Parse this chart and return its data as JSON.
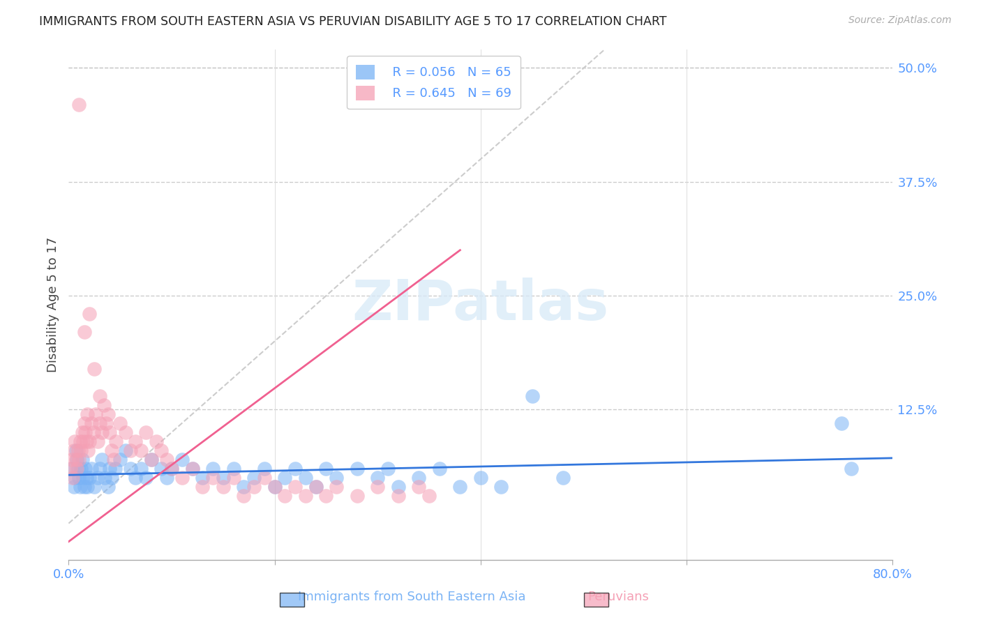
{
  "title": "IMMIGRANTS FROM SOUTH EASTERN ASIA VS PERUVIAN DISABILITY AGE 5 TO 17 CORRELATION CHART",
  "source": "Source: ZipAtlas.com",
  "ylabel": "Disability Age 5 to 17",
  "xlim": [
    0.0,
    0.8
  ],
  "ylim": [
    -0.04,
    0.52
  ],
  "yticks_right": [
    0.0,
    0.125,
    0.25,
    0.375,
    0.5
  ],
  "yticklabels_right": [
    "",
    "12.5%",
    "25.0%",
    "37.5%",
    "50.0%"
  ],
  "grid_color": "#cccccc",
  "background_color": "#ffffff",
  "title_color": "#222222",
  "axis_color": "#5599ff",
  "watermark": "ZIPatlas",
  "legend_r1": "R = 0.056",
  "legend_n1": "N = 65",
  "legend_r2": "R = 0.645",
  "legend_n2": "N = 69",
  "blue_color": "#7ab3f5",
  "pink_color": "#f5a0b5",
  "blue_line_color": "#3377dd",
  "pink_line_color": "#f06090",
  "diag_line_color": "#cccccc",
  "blue_scatter_x": [
    0.003,
    0.005,
    0.006,
    0.007,
    0.008,
    0.009,
    0.01,
    0.011,
    0.012,
    0.013,
    0.014,
    0.015,
    0.016,
    0.017,
    0.018,
    0.02,
    0.022,
    0.025,
    0.028,
    0.03,
    0.032,
    0.035,
    0.038,
    0.04,
    0.042,
    0.045,
    0.05,
    0.055,
    0.06,
    0.065,
    0.07,
    0.075,
    0.08,
    0.09,
    0.095,
    0.1,
    0.11,
    0.12,
    0.13,
    0.14,
    0.15,
    0.16,
    0.17,
    0.18,
    0.19,
    0.2,
    0.21,
    0.22,
    0.23,
    0.24,
    0.25,
    0.26,
    0.28,
    0.3,
    0.31,
    0.32,
    0.34,
    0.36,
    0.38,
    0.4,
    0.42,
    0.45,
    0.75,
    0.76,
    0.48
  ],
  "blue_scatter_y": [
    0.06,
    0.04,
    0.05,
    0.08,
    0.07,
    0.06,
    0.05,
    0.04,
    0.06,
    0.07,
    0.05,
    0.04,
    0.06,
    0.05,
    0.04,
    0.05,
    0.06,
    0.04,
    0.05,
    0.06,
    0.07,
    0.05,
    0.04,
    0.06,
    0.05,
    0.06,
    0.07,
    0.08,
    0.06,
    0.05,
    0.06,
    0.05,
    0.07,
    0.06,
    0.05,
    0.06,
    0.07,
    0.06,
    0.05,
    0.06,
    0.05,
    0.06,
    0.04,
    0.05,
    0.06,
    0.04,
    0.05,
    0.06,
    0.05,
    0.04,
    0.06,
    0.05,
    0.06,
    0.05,
    0.06,
    0.04,
    0.05,
    0.06,
    0.04,
    0.05,
    0.04,
    0.14,
    0.11,
    0.06,
    0.05
  ],
  "pink_scatter_x": [
    0.002,
    0.003,
    0.004,
    0.005,
    0.006,
    0.007,
    0.008,
    0.009,
    0.01,
    0.011,
    0.012,
    0.013,
    0.014,
    0.015,
    0.016,
    0.017,
    0.018,
    0.019,
    0.02,
    0.022,
    0.024,
    0.026,
    0.028,
    0.03,
    0.032,
    0.034,
    0.036,
    0.038,
    0.04,
    0.042,
    0.044,
    0.046,
    0.05,
    0.055,
    0.06,
    0.065,
    0.07,
    0.075,
    0.08,
    0.085,
    0.09,
    0.095,
    0.1,
    0.11,
    0.12,
    0.13,
    0.14,
    0.15,
    0.16,
    0.17,
    0.18,
    0.19,
    0.2,
    0.21,
    0.22,
    0.23,
    0.24,
    0.25,
    0.26,
    0.28,
    0.3,
    0.32,
    0.34,
    0.02,
    0.025,
    0.03,
    0.01,
    0.015,
    0.35
  ],
  "pink_scatter_y": [
    0.06,
    0.07,
    0.05,
    0.08,
    0.09,
    0.07,
    0.06,
    0.08,
    0.07,
    0.09,
    0.08,
    0.1,
    0.09,
    0.11,
    0.1,
    0.09,
    0.12,
    0.08,
    0.09,
    0.11,
    0.1,
    0.12,
    0.09,
    0.11,
    0.1,
    0.13,
    0.11,
    0.12,
    0.1,
    0.08,
    0.07,
    0.09,
    0.11,
    0.1,
    0.08,
    0.09,
    0.08,
    0.1,
    0.07,
    0.09,
    0.08,
    0.07,
    0.06,
    0.05,
    0.06,
    0.04,
    0.05,
    0.04,
    0.05,
    0.03,
    0.04,
    0.05,
    0.04,
    0.03,
    0.04,
    0.03,
    0.04,
    0.03,
    0.04,
    0.03,
    0.04,
    0.03,
    0.04,
    0.23,
    0.17,
    0.14,
    0.46,
    0.21,
    0.03
  ]
}
